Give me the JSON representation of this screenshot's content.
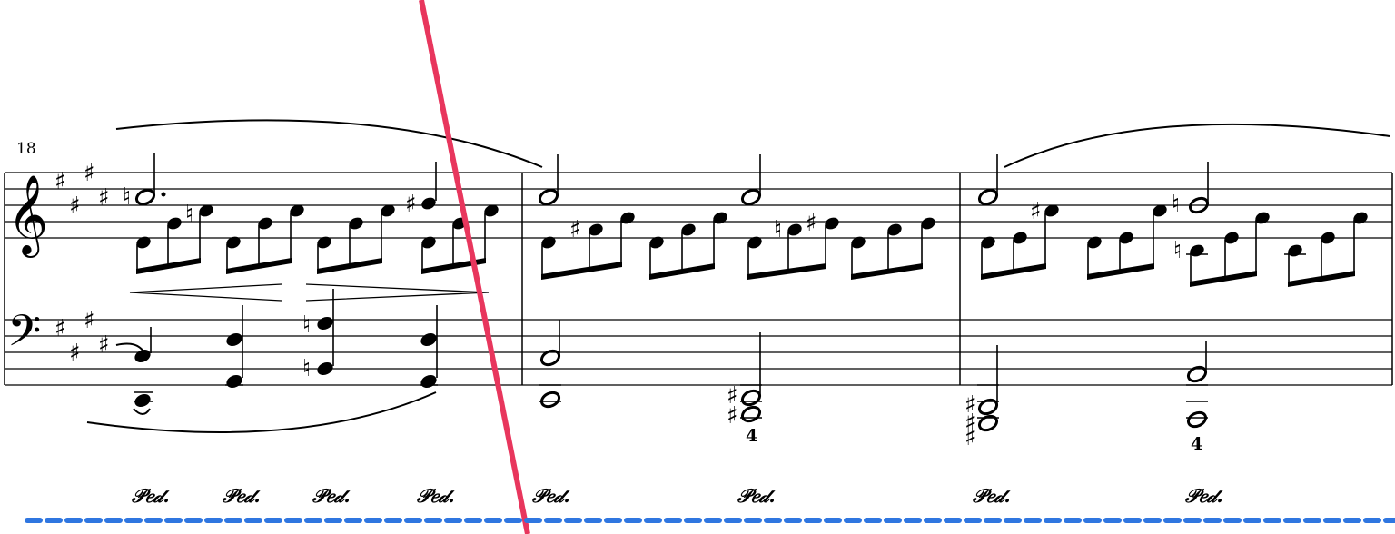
{
  "score": {
    "measure_number": "18",
    "treble_clef": "𝄞",
    "bass_clef": "𝄢",
    "key_signature": "E major (4 sharps)",
    "sharp_glyph": "♯",
    "natural_glyph": "♮",
    "fingerings": [
      "4",
      "4"
    ],
    "pedal_marks": [
      "𝒫𝑒𝒹.",
      "𝒫𝑒𝒹.",
      "𝒫𝑒𝒹.",
      "𝒫𝑒𝒹.",
      "𝒫𝑒𝒹.",
      "𝒫𝑒𝒹.",
      "𝒫𝑒𝒹.",
      "𝒫𝑒𝒹."
    ],
    "annotation_colors": {
      "diagonal_line": "#e8365d",
      "dashed_line": "#2f76e0"
    }
  }
}
